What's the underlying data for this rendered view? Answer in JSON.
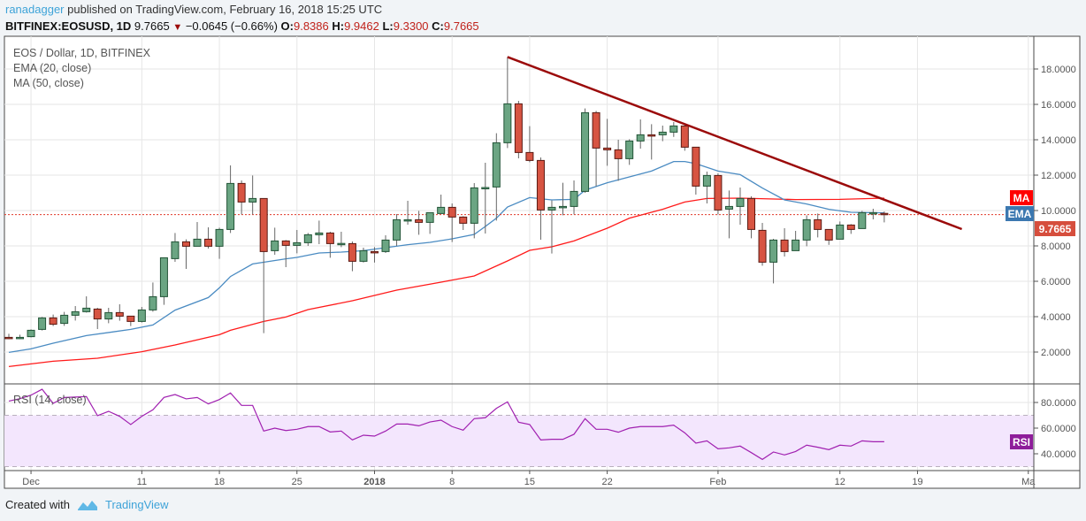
{
  "header": {
    "author": "ranadagger",
    "published": "published on TradingView.com, February 16, 2018 15:25 UTC",
    "symbol": "BITFINEX:EOSUSD, 1D",
    "last": "9.7665",
    "change": "−0.0645 (−0.66%)",
    "o_label": "O:",
    "o": "9.8386",
    "h_label": "H:",
    "h": "9.9462",
    "l_label": "L:",
    "l": "9.3300",
    "c_label": "C:",
    "c": "9.7665",
    "direction_icon": "triangle-down-icon"
  },
  "legend": {
    "title": "EOS / Dollar, 1D, BITFINEX",
    "ema": "EMA (20, close)",
    "ma": "MA (50, close)",
    "rsi": "RSI (14, close)"
  },
  "badges": {
    "ma": "MA",
    "ema": "EMA",
    "price": "9.7665",
    "rsi": "RSI"
  },
  "colors": {
    "up_fill": "#6ba583",
    "up_border": "#225437",
    "down_fill": "#d75442",
    "down_border": "#5b1a13",
    "ema": "#4a8bc2",
    "ma": "#ff1a1a",
    "trendline": "#9b0a0a",
    "rsi": "#a020b0",
    "rsi_band": "#f3e6fd",
    "price_line": "#e03a2a"
  },
  "footer": {
    "created_with": "Created with",
    "brand": "TradingView",
    "logo_icon": "tradingview-logo-icon"
  },
  "chart_data": [
    {
      "type": "candlestick",
      "title": "EOS / Dollar, 1D, BITFINEX",
      "ylim": [
        0,
        20
      ],
      "grid": true,
      "y_ticks": [
        "2.0000",
        "4.0000",
        "6.0000",
        "8.0000",
        "10.0000",
        "12.0000",
        "14.0000",
        "16.0000",
        "18.0000"
      ],
      "x_ticks": [
        {
          "label": "Dec",
          "date": "2017-12-01"
        },
        {
          "label": "11",
          "date": "2017-12-11"
        },
        {
          "label": "18",
          "date": "2017-12-18"
        },
        {
          "label": "25",
          "date": "2017-12-25"
        },
        {
          "label": "2018",
          "date": "2018-01-01",
          "bold": true
        },
        {
          "label": "8",
          "date": "2018-01-08"
        },
        {
          "label": "15",
          "date": "2018-01-15"
        },
        {
          "label": "22",
          "date": "2018-01-22"
        },
        {
          "label": "Feb",
          "date": "2018-02-01"
        },
        {
          "label": "12",
          "date": "2018-02-12"
        },
        {
          "label": "19",
          "date": "2018-02-19"
        },
        {
          "label": "Ma",
          "date": "2018-03-01"
        }
      ],
      "candles_columns": [
        "date",
        "open",
        "high",
        "low",
        "close"
      ],
      "candles": [
        [
          "2017-11-29",
          2.83,
          3.03,
          2.73,
          2.8
        ],
        [
          "2017-11-30",
          2.8,
          2.98,
          2.73,
          2.83
        ],
        [
          "2017-12-01",
          2.87,
          3.28,
          2.83,
          3.23
        ],
        [
          "2017-12-02",
          3.28,
          3.98,
          3.22,
          3.93
        ],
        [
          "2017-12-03",
          3.93,
          4.12,
          3.47,
          3.57
        ],
        [
          "2017-12-04",
          3.62,
          4.27,
          3.48,
          4.08
        ],
        [
          "2017-12-05",
          4.08,
          4.6,
          3.78,
          4.28
        ],
        [
          "2017-12-06",
          4.28,
          5.15,
          4.23,
          4.48
        ],
        [
          "2017-12-07",
          4.43,
          4.5,
          3.3,
          3.87
        ],
        [
          "2017-12-08",
          3.87,
          4.5,
          3.63,
          4.23
        ],
        [
          "2017-12-09",
          4.23,
          4.7,
          3.77,
          4.03
        ],
        [
          "2017-12-10",
          4.03,
          4.03,
          3.47,
          3.73
        ],
        [
          "2017-12-11",
          3.73,
          4.55,
          3.67,
          4.38
        ],
        [
          "2017-12-12",
          4.38,
          5.93,
          4.28,
          5.13
        ],
        [
          "2017-12-13",
          5.13,
          7.33,
          4.67,
          7.33
        ],
        [
          "2017-12-14",
          7.28,
          8.73,
          7.1,
          8.23
        ],
        [
          "2017-12-15",
          8.23,
          8.37,
          6.7,
          7.98
        ],
        [
          "2017-12-16",
          7.98,
          9.35,
          7.98,
          8.38
        ],
        [
          "2017-12-17",
          8.38,
          9.05,
          7.85,
          7.98
        ],
        [
          "2017-12-18",
          7.98,
          9.03,
          7.27,
          8.93
        ],
        [
          "2017-12-19",
          8.93,
          12.55,
          8.73,
          11.53
        ],
        [
          "2017-12-20",
          11.53,
          11.7,
          9.78,
          10.48
        ],
        [
          "2017-12-21",
          10.48,
          11.98,
          9.78,
          10.68
        ],
        [
          "2017-12-22",
          10.68,
          10.68,
          3.07,
          7.68
        ],
        [
          "2017-12-23",
          7.73,
          9.03,
          7.5,
          8.28
        ],
        [
          "2017-12-24",
          8.28,
          8.33,
          6.8,
          8.03
        ],
        [
          "2017-12-25",
          8.03,
          8.9,
          7.58,
          8.18
        ],
        [
          "2017-12-26",
          8.18,
          8.73,
          8.0,
          8.63
        ],
        [
          "2017-12-27",
          8.63,
          9.43,
          8.1,
          8.73
        ],
        [
          "2017-12-28",
          8.73,
          8.8,
          7.33,
          8.13
        ],
        [
          "2017-12-29",
          8.13,
          8.8,
          7.93,
          8.14
        ],
        [
          "2017-12-30",
          8.13,
          8.25,
          6.57,
          7.13
        ],
        [
          "2017-12-31",
          7.13,
          7.9,
          7.06,
          7.73
        ],
        [
          "2018-01-01",
          7.68,
          7.93,
          7.06,
          7.63
        ],
        [
          "2018-01-02",
          7.68,
          8.6,
          7.6,
          8.33
        ],
        [
          "2018-01-03",
          8.33,
          9.8,
          8.0,
          9.48
        ],
        [
          "2018-01-04",
          9.45,
          10.55,
          9.2,
          9.48
        ],
        [
          "2018-01-05",
          9.48,
          9.98,
          8.63,
          9.33
        ],
        [
          "2018-01-06",
          9.33,
          9.9,
          8.68,
          9.88
        ],
        [
          "2018-01-07",
          9.83,
          10.9,
          9.83,
          10.18
        ],
        [
          "2018-01-08",
          10.18,
          10.4,
          8.22,
          9.63
        ],
        [
          "2018-01-09",
          9.63,
          9.68,
          8.9,
          9.28
        ],
        [
          "2018-01-10",
          9.28,
          11.55,
          8.43,
          11.28
        ],
        [
          "2018-01-11",
          11.25,
          12.7,
          8.7,
          11.3
        ],
        [
          "2018-01-12",
          11.33,
          14.37,
          9.43,
          13.83
        ],
        [
          "2018-01-13",
          13.83,
          18.68,
          13.53,
          16.03
        ],
        [
          "2018-01-14",
          16.03,
          16.2,
          12.95,
          13.28
        ],
        [
          "2018-01-15",
          13.28,
          14.77,
          12.73,
          12.83
        ],
        [
          "2018-01-16",
          12.83,
          13.0,
          8.35,
          10.03
        ],
        [
          "2018-01-17",
          10.03,
          10.57,
          7.57,
          10.18
        ],
        [
          "2018-01-18",
          10.2,
          11.57,
          9.73,
          10.23
        ],
        [
          "2018-01-19",
          10.23,
          11.7,
          9.78,
          11.08
        ],
        [
          "2018-01-20",
          11.08,
          15.77,
          11.0,
          15.53
        ],
        [
          "2018-01-21",
          15.53,
          15.63,
          11.37,
          13.53
        ],
        [
          "2018-01-22",
          13.53,
          15.18,
          12.53,
          13.43
        ],
        [
          "2018-01-23",
          13.43,
          14.0,
          11.68,
          12.93
        ],
        [
          "2018-01-24",
          12.93,
          14.03,
          12.58,
          13.93
        ],
        [
          "2018-01-25",
          13.93,
          15.15,
          13.5,
          14.28
        ],
        [
          "2018-01-26",
          14.28,
          14.88,
          12.88,
          14.23
        ],
        [
          "2018-01-27",
          14.28,
          14.8,
          13.92,
          14.43
        ],
        [
          "2018-01-28",
          14.43,
          15.0,
          14.16,
          14.78
        ],
        [
          "2018-01-29",
          14.78,
          14.9,
          13.38,
          13.58
        ],
        [
          "2018-01-30",
          13.58,
          13.6,
          10.9,
          11.38
        ],
        [
          "2018-01-31",
          11.38,
          12.2,
          10.4,
          11.98
        ],
        [
          "2018-02-01",
          11.98,
          12.1,
          9.78,
          10.03
        ],
        [
          "2018-02-02",
          10.08,
          11.13,
          8.43,
          10.23
        ],
        [
          "2018-02-03",
          10.23,
          11.3,
          9.2,
          10.68
        ],
        [
          "2018-02-04",
          10.68,
          10.8,
          8.43,
          8.93
        ],
        [
          "2018-02-05",
          8.88,
          9.3,
          6.88,
          7.08
        ],
        [
          "2018-02-06",
          7.08,
          8.4,
          5.88,
          8.33
        ],
        [
          "2018-02-07",
          8.33,
          9.0,
          7.4,
          7.68
        ],
        [
          "2018-02-08",
          7.73,
          8.85,
          7.73,
          8.33
        ],
        [
          "2018-02-09",
          8.33,
          9.73,
          7.98,
          9.48
        ],
        [
          "2018-02-10",
          9.48,
          9.83,
          8.48,
          8.93
        ],
        [
          "2018-02-11",
          8.93,
          8.93,
          8.06,
          8.33
        ],
        [
          "2018-02-12",
          8.38,
          9.38,
          8.38,
          9.18
        ],
        [
          "2018-02-13",
          9.18,
          9.23,
          8.68,
          8.93
        ],
        [
          "2018-02-14",
          8.98,
          9.98,
          8.98,
          9.88
        ],
        [
          "2018-02-15",
          9.84,
          10.1,
          9.5,
          9.88
        ],
        [
          "2018-02-16",
          9.8386,
          9.9462,
          9.33,
          9.7665
        ]
      ],
      "series": [
        {
          "name": "EMA (20, close)",
          "points": [
            [
              "2017-11-29",
              1.98
            ],
            [
              "2017-12-01",
              2.18
            ],
            [
              "2017-12-03",
              2.5
            ],
            [
              "2017-12-06",
              2.93
            ],
            [
              "2017-12-10",
              3.28
            ],
            [
              "2017-12-12",
              3.53
            ],
            [
              "2017-12-14",
              4.37
            ],
            [
              "2017-12-17",
              5.08
            ],
            [
              "2017-12-18",
              5.63
            ],
            [
              "2017-12-19",
              6.27
            ],
            [
              "2017-12-21",
              6.98
            ],
            [
              "2017-12-24",
              7.27
            ],
            [
              "2017-12-25",
              7.35
            ],
            [
              "2017-12-27",
              7.6
            ],
            [
              "2017-12-29",
              7.65
            ],
            [
              "2017-12-31",
              7.73
            ],
            [
              "2018-01-02",
              7.9
            ],
            [
              "2018-01-04",
              8.07
            ],
            [
              "2018-01-06",
              8.2
            ],
            [
              "2018-01-08",
              8.4
            ],
            [
              "2018-01-10",
              8.65
            ],
            [
              "2018-01-11",
              9.1
            ],
            [
              "2018-01-12",
              9.57
            ],
            [
              "2018-01-13",
              10.2
            ],
            [
              "2018-01-15",
              10.73
            ],
            [
              "2018-01-17",
              10.6
            ],
            [
              "2018-01-19",
              10.63
            ],
            [
              "2018-01-20",
              11.15
            ],
            [
              "2018-01-22",
              11.57
            ],
            [
              "2018-01-24",
              11.9
            ],
            [
              "2018-01-26",
              12.23
            ],
            [
              "2018-01-28",
              12.77
            ],
            [
              "2018-01-29",
              12.77
            ],
            [
              "2018-01-30",
              12.65
            ],
            [
              "2018-02-01",
              12.23
            ],
            [
              "2018-02-03",
              12.03
            ],
            [
              "2018-02-05",
              11.27
            ],
            [
              "2018-02-07",
              10.6
            ],
            [
              "2018-02-09",
              10.37
            ],
            [
              "2018-02-11",
              10.07
            ],
            [
              "2018-02-13",
              9.9
            ],
            [
              "2018-02-16",
              9.87
            ]
          ]
        },
        {
          "name": "MA (50, close)",
          "points": [
            [
              "2017-11-29",
              1.18
            ],
            [
              "2017-12-03",
              1.48
            ],
            [
              "2017-12-07",
              1.65
            ],
            [
              "2017-12-11",
              2.02
            ],
            [
              "2017-12-14",
              2.4
            ],
            [
              "2017-12-18",
              2.98
            ],
            [
              "2017-12-19",
              3.23
            ],
            [
              "2017-12-22",
              3.73
            ],
            [
              "2017-12-24",
              3.98
            ],
            [
              "2017-12-26",
              4.4
            ],
            [
              "2017-12-30",
              4.9
            ],
            [
              "2018-01-03",
              5.5
            ],
            [
              "2018-01-07",
              5.95
            ],
            [
              "2018-01-10",
              6.3
            ],
            [
              "2018-01-13",
              7.15
            ],
            [
              "2018-01-15",
              7.75
            ],
            [
              "2018-01-17",
              7.95
            ],
            [
              "2018-01-19",
              8.28
            ],
            [
              "2018-01-22",
              9.0
            ],
            [
              "2018-01-24",
              9.57
            ],
            [
              "2018-01-27",
              10.07
            ],
            [
              "2018-01-29",
              10.48
            ],
            [
              "2018-01-31",
              10.68
            ],
            [
              "2018-02-03",
              10.7
            ],
            [
              "2018-02-08",
              10.62
            ],
            [
              "2018-02-12",
              10.63
            ],
            [
              "2018-02-16",
              10.7
            ]
          ]
        }
      ],
      "last_price": 9.7665,
      "trendline": [
        [
          "2018-01-13",
          18.68
        ],
        [
          "2018-02-23",
          8.95
        ]
      ]
    },
    {
      "type": "line",
      "title": "RSI (14, close)",
      "ylim": [
        30,
        90
      ],
      "y_ticks": [
        "40.0000",
        "60.0000",
        "80.0000"
      ],
      "bands": [
        30,
        70
      ],
      "rsi": [
        81.1,
        83.0,
        85.7,
        90.3,
        79.3,
        83.9,
        84.2,
        84.6,
        69.7,
        73.1,
        69.2,
        62.8,
        69.2,
        74.3,
        83.9,
        86.2,
        82.8,
        83.9,
        78.9,
        82.3,
        87.4,
        77.7,
        77.7,
        57.7,
        60.0,
        58.1,
        59.1,
        61.2,
        61.2,
        57.0,
        57.7,
        50.8,
        54.5,
        53.8,
        57.7,
        63.2,
        63.2,
        61.8,
        64.8,
        66.2,
        61.2,
        58.4,
        67.4,
        68.1,
        75.4,
        80.5,
        64.6,
        62.8,
        50.8,
        51.3,
        51.3,
        55.2,
        67.4,
        59.1,
        59.1,
        56.8,
        60.0,
        61.2,
        61.2,
        61.2,
        62.3,
        56.3,
        48.3,
        50.1,
        43.9,
        44.6,
        46.0,
        40.9,
        35.6,
        41.4,
        39.1,
        41.8,
        46.7,
        45.1,
        43.2,
        46.7,
        46.0,
        50.1,
        49.4,
        49.4
      ]
    }
  ]
}
